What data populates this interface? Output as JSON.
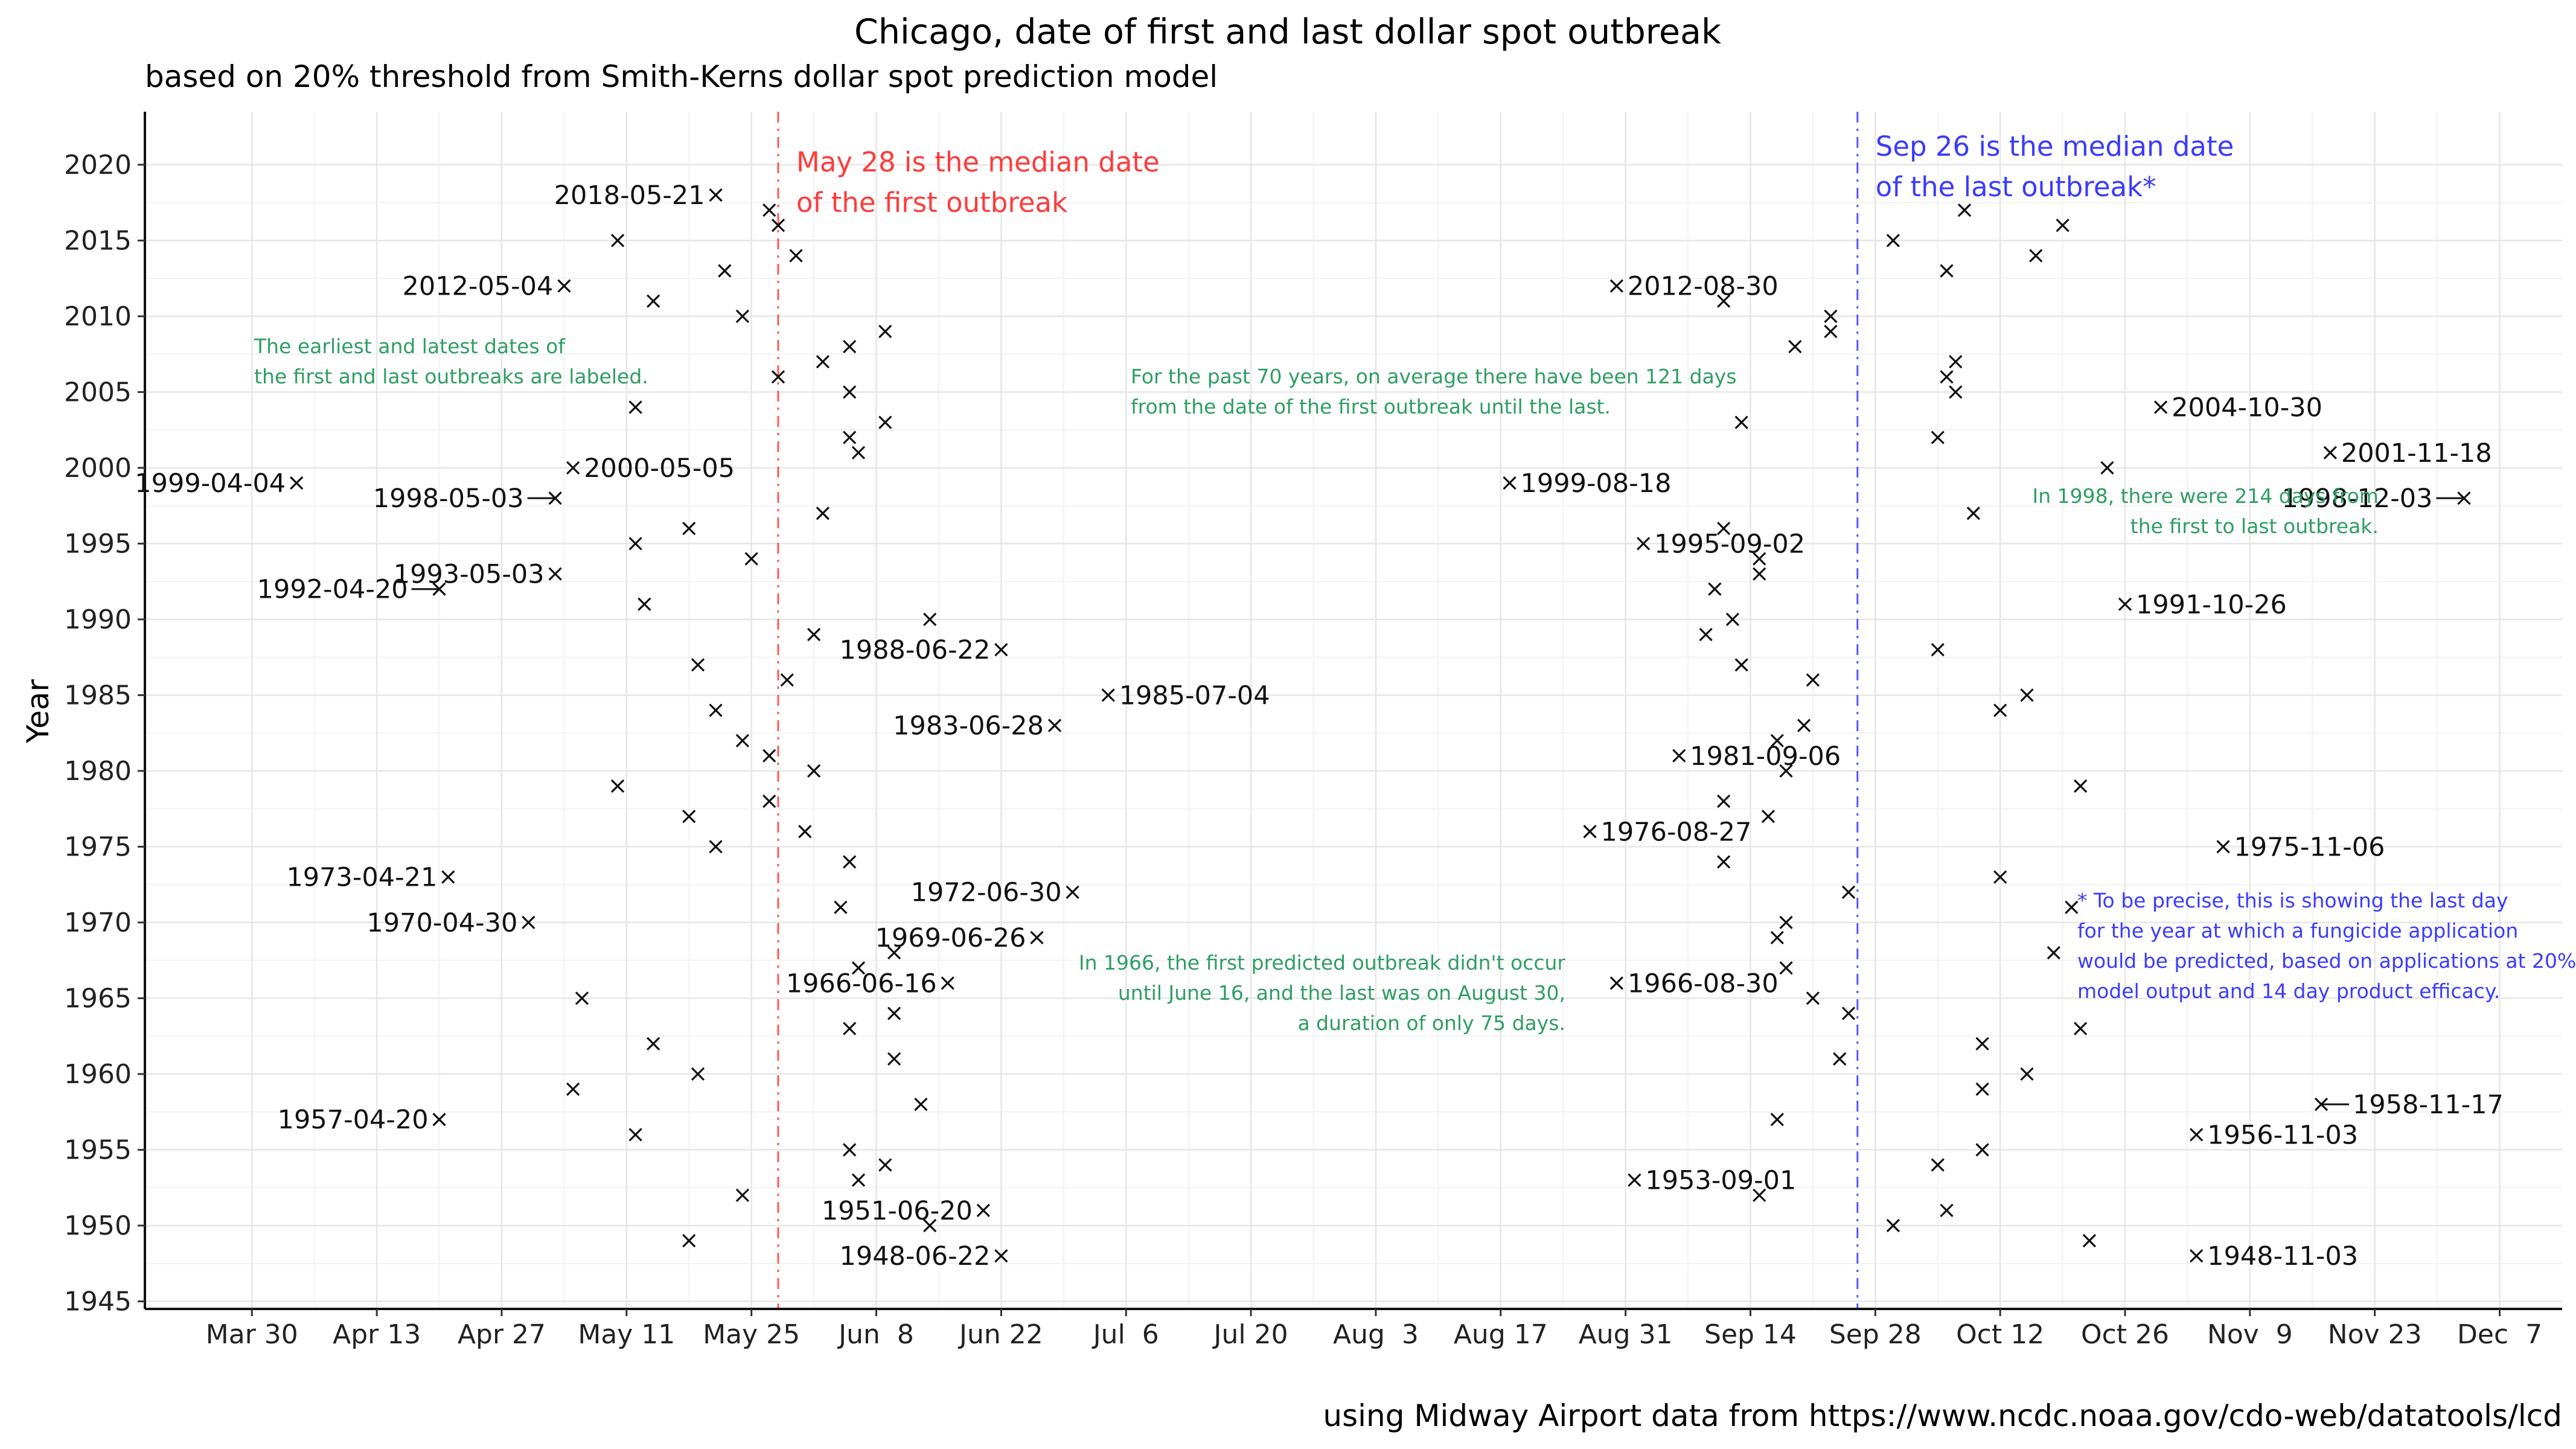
{
  "chart_data": {
    "type": "scatter",
    "title": "Chicago, date of first and last dollar spot outbreak",
    "subtitle": "based on 20% threshold from Smith-Kerns dollar spot prediction model",
    "caption": "using Midway Airport data from https://www.ncdc.noaa.gov/cdo-web/datatools/lcd",
    "xlabel": "",
    "ylabel": "Year",
    "x_axis": {
      "type": "date (day of year)",
      "ticks": [
        "Mar 30",
        "Apr 13",
        "Apr 27",
        "May 11",
        "May 25",
        "Jun  8",
        "Jun 22",
        "Jul  6",
        "Jul 20",
        "Aug  3",
        "Aug 17",
        "Aug 31",
        "Sep 14",
        "Sep 28",
        "Oct 12",
        "Oct 26",
        "Nov  9",
        "Nov 23",
        "Dec  7"
      ],
      "range": [
        "Mar 18",
        "Dec 14"
      ]
    },
    "y_axis": {
      "ticks": [
        1945,
        1950,
        1955,
        1960,
        1965,
        1970,
        1975,
        1980,
        1985,
        1990,
        1995,
        2000,
        2005,
        2010,
        2015,
        2020
      ],
      "range": [
        1944.5,
        2023.5
      ]
    },
    "grid": true,
    "marker": "×",
    "first_outbreak": [
      {
        "year": 1948,
        "date": "06-22"
      },
      {
        "year": 1949,
        "date": "05-18"
      },
      {
        "year": 1950,
        "date": "06-14"
      },
      {
        "year": 1951,
        "date": "06-20"
      },
      {
        "year": 1952,
        "date": "05-24"
      },
      {
        "year": 1953,
        "date": "06-06"
      },
      {
        "year": 1954,
        "date": "06-09"
      },
      {
        "year": 1955,
        "date": "06-05"
      },
      {
        "year": 1956,
        "date": "05-12"
      },
      {
        "year": 1957,
        "date": "04-20"
      },
      {
        "year": 1958,
        "date": "06-13"
      },
      {
        "year": 1959,
        "date": "05-05"
      },
      {
        "year": 1960,
        "date": "05-19"
      },
      {
        "year": 1961,
        "date": "06-10"
      },
      {
        "year": 1962,
        "date": "05-14"
      },
      {
        "year": 1963,
        "date": "06-05"
      },
      {
        "year": 1964,
        "date": "06-10"
      },
      {
        "year": 1965,
        "date": "05-06"
      },
      {
        "year": 1966,
        "date": "06-16"
      },
      {
        "year": 1967,
        "date": "06-06"
      },
      {
        "year": 1968,
        "date": "06-10"
      },
      {
        "year": 1969,
        "date": "06-26"
      },
      {
        "year": 1970,
        "date": "04-30"
      },
      {
        "year": 1971,
        "date": "06-04"
      },
      {
        "year": 1972,
        "date": "06-30"
      },
      {
        "year": 1973,
        "date": "04-21"
      },
      {
        "year": 1974,
        "date": "06-05"
      },
      {
        "year": 1975,
        "date": "05-21"
      },
      {
        "year": 1976,
        "date": "05-31"
      },
      {
        "year": 1977,
        "date": "05-18"
      },
      {
        "year": 1978,
        "date": "05-27"
      },
      {
        "year": 1979,
        "date": "05-10"
      },
      {
        "year": 1980,
        "date": "06-01"
      },
      {
        "year": 1981,
        "date": "05-27"
      },
      {
        "year": 1982,
        "date": "05-24"
      },
      {
        "year": 1983,
        "date": "06-28"
      },
      {
        "year": 1984,
        "date": "05-21"
      },
      {
        "year": 1985,
        "date": "07-04"
      },
      {
        "year": 1986,
        "date": "05-29"
      },
      {
        "year": 1987,
        "date": "05-19"
      },
      {
        "year": 1988,
        "date": "06-22"
      },
      {
        "year": 1989,
        "date": "06-01"
      },
      {
        "year": 1990,
        "date": "06-14"
      },
      {
        "year": 1991,
        "date": "05-13"
      },
      {
        "year": 1992,
        "date": "04-20"
      },
      {
        "year": 1993,
        "date": "05-03"
      },
      {
        "year": 1994,
        "date": "05-25"
      },
      {
        "year": 1995,
        "date": "05-12"
      },
      {
        "year": 1996,
        "date": "05-18"
      },
      {
        "year": 1997,
        "date": "06-02"
      },
      {
        "year": 1998,
        "date": "05-03"
      },
      {
        "year": 1999,
        "date": "04-04"
      },
      {
        "year": 2000,
        "date": "05-05"
      },
      {
        "year": 2001,
        "date": "06-06"
      },
      {
        "year": 2002,
        "date": "06-05"
      },
      {
        "year": 2003,
        "date": "06-09"
      },
      {
        "year": 2004,
        "date": "05-12"
      },
      {
        "year": 2005,
        "date": "06-05"
      },
      {
        "year": 2006,
        "date": "05-28"
      },
      {
        "year": 2007,
        "date": "06-02"
      },
      {
        "year": 2008,
        "date": "06-05"
      },
      {
        "year": 2009,
        "date": "06-09"
      },
      {
        "year": 2010,
        "date": "05-24"
      },
      {
        "year": 2011,
        "date": "05-14"
      },
      {
        "year": 2012,
        "date": "05-04"
      },
      {
        "year": 2013,
        "date": "05-22"
      },
      {
        "year": 2014,
        "date": "05-30"
      },
      {
        "year": 2015,
        "date": "05-10"
      },
      {
        "year": 2016,
        "date": "05-28"
      },
      {
        "year": 2017,
        "date": "05-27"
      },
      {
        "year": 2018,
        "date": "05-21"
      }
    ],
    "last_outbreak": [
      {
        "year": 1948,
        "date": "11-03"
      },
      {
        "year": 1949,
        "date": "10-22"
      },
      {
        "year": 1950,
        "date": "09-30"
      },
      {
        "year": 1951,
        "date": "10-06"
      },
      {
        "year": 1952,
        "date": "09-15"
      },
      {
        "year": 1953,
        "date": "09-01"
      },
      {
        "year": 1954,
        "date": "10-05"
      },
      {
        "year": 1955,
        "date": "10-10"
      },
      {
        "year": 1956,
        "date": "11-03"
      },
      {
        "year": 1957,
        "date": "09-17"
      },
      {
        "year": 1958,
        "date": "11-17"
      },
      {
        "year": 1959,
        "date": "10-10"
      },
      {
        "year": 1960,
        "date": "10-15"
      },
      {
        "year": 1961,
        "date": "09-24"
      },
      {
        "year": 1962,
        "date": "10-10"
      },
      {
        "year": 1963,
        "date": "10-21"
      },
      {
        "year": 1964,
        "date": "09-25"
      },
      {
        "year": 1965,
        "date": "09-21"
      },
      {
        "year": 1966,
        "date": "08-30"
      },
      {
        "year": 1967,
        "date": "09-18"
      },
      {
        "year": 1968,
        "date": "10-18"
      },
      {
        "year": 1969,
        "date": "09-17"
      },
      {
        "year": 1970,
        "date": "09-18"
      },
      {
        "year": 1971,
        "date": "10-20"
      },
      {
        "year": 1972,
        "date": "09-25"
      },
      {
        "year": 1973,
        "date": "10-12"
      },
      {
        "year": 1974,
        "date": "09-11"
      },
      {
        "year": 1975,
        "date": "11-06"
      },
      {
        "year": 1976,
        "date": "08-27"
      },
      {
        "year": 1977,
        "date": "09-16"
      },
      {
        "year": 1978,
        "date": "09-11"
      },
      {
        "year": 1979,
        "date": "10-21"
      },
      {
        "year": 1980,
        "date": "09-18"
      },
      {
        "year": 1981,
        "date": "09-06"
      },
      {
        "year": 1982,
        "date": "09-17"
      },
      {
        "year": 1983,
        "date": "09-20"
      },
      {
        "year": 1984,
        "date": "10-12"
      },
      {
        "year": 1985,
        "date": "10-15"
      },
      {
        "year": 1986,
        "date": "09-21"
      },
      {
        "year": 1987,
        "date": "09-13"
      },
      {
        "year": 1988,
        "date": "10-05"
      },
      {
        "year": 1989,
        "date": "09-09"
      },
      {
        "year": 1990,
        "date": "09-12"
      },
      {
        "year": 1991,
        "date": "10-26"
      },
      {
        "year": 1992,
        "date": "09-10"
      },
      {
        "year": 1993,
        "date": "09-15"
      },
      {
        "year": 1994,
        "date": "09-15"
      },
      {
        "year": 1995,
        "date": "09-02"
      },
      {
        "year": 1996,
        "date": "09-11"
      },
      {
        "year": 1997,
        "date": "10-09"
      },
      {
        "year": 1998,
        "date": "12-03"
      },
      {
        "year": 1999,
        "date": "08-18"
      },
      {
        "year": 2000,
        "date": "10-24"
      },
      {
        "year": 2001,
        "date": "11-18"
      },
      {
        "year": 2002,
        "date": "10-05"
      },
      {
        "year": 2003,
        "date": "09-13"
      },
      {
        "year": 2004,
        "date": "10-30"
      },
      {
        "year": 2005,
        "date": "10-07"
      },
      {
        "year": 2006,
        "date": "10-06"
      },
      {
        "year": 2007,
        "date": "10-07"
      },
      {
        "year": 2008,
        "date": "09-19"
      },
      {
        "year": 2009,
        "date": "09-23"
      },
      {
        "year": 2010,
        "date": "09-23"
      },
      {
        "year": 2011,
        "date": "09-11"
      },
      {
        "year": 2012,
        "date": "08-30"
      },
      {
        "year": 2013,
        "date": "10-06"
      },
      {
        "year": 2014,
        "date": "10-16"
      },
      {
        "year": 2015,
        "date": "09-30"
      },
      {
        "year": 2016,
        "date": "10-19"
      },
      {
        "year": 2017,
        "date": "10-08"
      }
    ],
    "point_labels": [
      {
        "series": "first",
        "year": 2018,
        "text": "2018-05-21",
        "side": "left"
      },
      {
        "series": "first",
        "year": 2012,
        "text": "2012-05-04",
        "side": "left"
      },
      {
        "series": "first",
        "year": 2000,
        "text": "2000-05-05",
        "side": "right"
      },
      {
        "series": "first",
        "year": 1999,
        "text": "1999-04-04",
        "side": "left"
      },
      {
        "series": "first",
        "year": 1998,
        "text": "1998-05-03",
        "side": "left",
        "leader": true
      },
      {
        "series": "first",
        "year": 1993,
        "text": "1993-05-03",
        "side": "left"
      },
      {
        "series": "first",
        "year": 1992,
        "text": "1992-04-20",
        "side": "left",
        "leader": true
      },
      {
        "series": "first",
        "year": 1988,
        "text": "1988-06-22",
        "side": "left"
      },
      {
        "series": "first",
        "year": 1985,
        "text": "1985-07-04",
        "side": "right"
      },
      {
        "series": "first",
        "year": 1983,
        "text": "1983-06-28",
        "side": "left"
      },
      {
        "series": "first",
        "year": 1973,
        "text": "1973-04-21",
        "side": "left"
      },
      {
        "series": "first",
        "year": 1972,
        "text": "1972-06-30",
        "side": "left"
      },
      {
        "series": "first",
        "year": 1970,
        "text": "1970-04-30",
        "side": "left"
      },
      {
        "series": "first",
        "year": 1969,
        "text": "1969-06-26",
        "side": "left"
      },
      {
        "series": "first",
        "year": 1966,
        "text": "1966-06-16",
        "side": "left"
      },
      {
        "series": "first",
        "year": 1957,
        "text": "1957-04-20",
        "side": "left"
      },
      {
        "series": "first",
        "year": 1951,
        "text": "1951-06-20",
        "side": "left"
      },
      {
        "series": "first",
        "year": 1948,
        "text": "1948-06-22",
        "side": "left"
      },
      {
        "series": "last",
        "year": 2012,
        "text": "2012-08-30",
        "side": "right"
      },
      {
        "series": "last",
        "year": 2004,
        "text": "2004-10-30",
        "side": "right"
      },
      {
        "series": "last",
        "year": 2001,
        "text": "2001-11-18",
        "side": "right"
      },
      {
        "series": "last",
        "year": 1999,
        "text": "1999-08-18",
        "side": "right"
      },
      {
        "series": "last",
        "year": 1998,
        "text": "1998-12-03",
        "side": "left",
        "leader": true
      },
      {
        "series": "last",
        "year": 1995,
        "text": "1995-09-02",
        "side": "right"
      },
      {
        "series": "last",
        "year": 1991,
        "text": "1991-10-26",
        "side": "right"
      },
      {
        "series": "last",
        "year": 1981,
        "text": "1981-09-06",
        "side": "right"
      },
      {
        "series": "last",
        "year": 1976,
        "text": "1976-08-27",
        "side": "right"
      },
      {
        "series": "last",
        "year": 1975,
        "text": "1975-11-06",
        "side": "right"
      },
      {
        "series": "last",
        "year": 1966,
        "text": "1966-08-30",
        "side": "right"
      },
      {
        "series": "last",
        "year": 1958,
        "text": "1958-11-17",
        "side": "right",
        "leader": true
      },
      {
        "series": "last",
        "year": 1956,
        "text": "1956-11-03",
        "side": "right"
      },
      {
        "series": "last",
        "year": 1953,
        "text": "1953-09-01",
        "side": "right"
      },
      {
        "series": "last",
        "year": 1948,
        "text": "1948-11-03",
        "side": "right"
      }
    ],
    "reference_lines": [
      {
        "name": "median-first",
        "date": "05-28",
        "color": "#ff3b3b",
        "style": "dashdot"
      },
      {
        "name": "median-last",
        "date": "09-26",
        "color": "#3b3bff",
        "style": "dashdot"
      }
    ],
    "annotations": {
      "median_first": [
        "May 28 is the median date",
        "of the first outbreak"
      ],
      "median_last": [
        "Sep 26 is the median date",
        "of the last outbreak*"
      ],
      "labeled_note": [
        "The earliest and latest dates of",
        "the first and last outbreaks are labeled."
      ],
      "average_note": [
        "For the past 70 years, on average there have been 121 days",
        "from the date of the first outbreak until the last."
      ],
      "note_1998": [
        "In 1998, there were 214 days from",
        "the first to last outbreak."
      ],
      "note_1966": [
        "In 1966, the first predicted outbreak didn't occur",
        "until June 16, and the last was on August 30,",
        "a duration of only 75 days."
      ],
      "footnote": [
        "* To be precise, this is showing the last day",
        "for the year at which a fungicide application",
        "would be predicted, based on applications at 20%",
        "model output and 14 day product efficacy."
      ]
    },
    "colors": {
      "median_first": "#ff3b3b",
      "median_last": "#3b3bff",
      "notes": "#2e9e63",
      "points": "#111111"
    }
  }
}
